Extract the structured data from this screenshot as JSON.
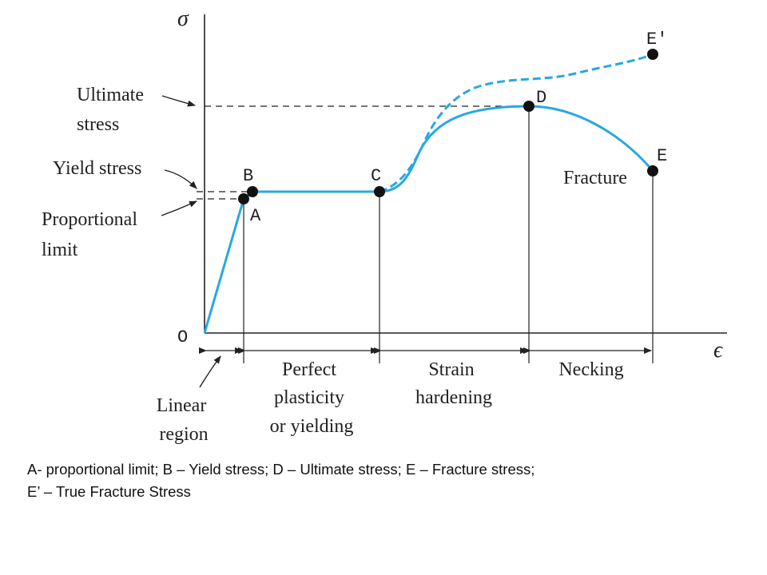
{
  "axes": {
    "y_symbol": "σ",
    "x_symbol": "ϵ",
    "origin": "O"
  },
  "points": {
    "A": "A",
    "B": "B",
    "C": "C",
    "D": "D",
    "E": "E",
    "E_prime": "E'"
  },
  "stress_labels": {
    "ultimate": [
      "Ultimate",
      "stress"
    ],
    "yield": "Yield stress",
    "proportional": [
      "Proportional",
      "limit"
    ],
    "fracture": "Fracture"
  },
  "regions": {
    "linear": [
      "Linear",
      "region"
    ],
    "perfect": [
      "Perfect",
      "plasticity",
      "or yielding"
    ],
    "strain": [
      "Strain",
      "hardening"
    ],
    "necking": "Necking"
  },
  "colors": {
    "curve": "#29a8e0",
    "ink": "#222222",
    "point": "#111111"
  },
  "caption": {
    "line1": "A- proportional limit; B – Yield stress; D – Ultimate stress; E – Fracture stress;",
    "line2": "E’ – True Fracture Stress"
  }
}
